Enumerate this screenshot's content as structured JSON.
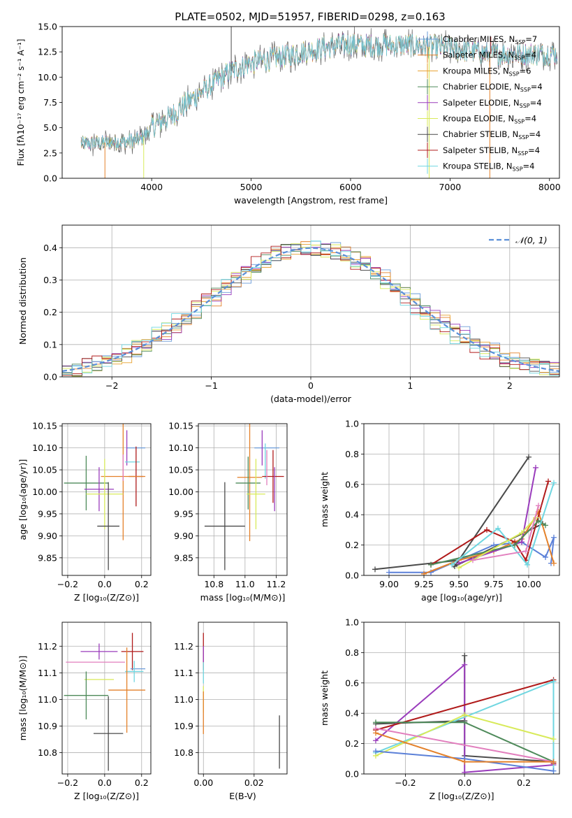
{
  "figure_title": "PLATE=0502, MJD=51957, FIBERID=0298, z=0.163",
  "colors": {
    "Chabrier MILES": "#6a9bd8",
    "Salpeter MILES": "#e4812a",
    "Kroupa MILES": "#e8a12f",
    "Chabrier ELODIE": "#4e8a5a",
    "Salpeter ELODIE": "#9a3cbc",
    "Kroupa ELODIE": "#d8ea5a",
    "Chabrier STELIB": "#4a4a4a",
    "Salpeter STELIB": "#b01a1a",
    "Kroupa STELIB": "#6fd6e0",
    "pink": "#e27fbe",
    "blue": "#5b80d8",
    "gauss": "#5b8fd8"
  },
  "chart_data": [
    {
      "id": "spectrum",
      "type": "line",
      "title": "PLATE=0502, MJD=51957, FIBERID=0298, z=0.163",
      "xlabel": "wavelength [Angstrom, rest frame]",
      "ylabel": "Flux [fλ10⁻¹⁷ erg cm⁻² s⁻¹ A⁻¹]",
      "xlim": [
        3100,
        8100
      ],
      "ylim": [
        0,
        15
      ],
      "x_ticks": [
        4000,
        5000,
        6000,
        7000,
        8000
      ],
      "y_ticks": [
        0.0,
        2.5,
        5.0,
        7.5,
        10.0,
        12.5,
        15.0
      ],
      "grid": false,
      "legend_position": "upper right",
      "legend": [
        {
          "name": "Chabrier MILES",
          "n": "7",
          "color": "#6a9bd8"
        },
        {
          "name": "Salpeter MILES",
          "n": "4",
          "color": "#e4812a"
        },
        {
          "name": "Kroupa MILES",
          "n": "6",
          "color": "#e8a12f"
        },
        {
          "name": "Chabrier ELODIE",
          "n": "4",
          "color": "#4e8a5a"
        },
        {
          "name": "Salpeter ELODIE",
          "n": "4",
          "color": "#9a3cbc"
        },
        {
          "name": "Kroupa ELODIE",
          "n": "4",
          "color": "#d8ea5a"
        },
        {
          "name": "Chabrier STELIB",
          "n": "4",
          "color": "#4a4a4a"
        },
        {
          "name": "Salpeter STELIB",
          "n": "4",
          "color": "#b01a1a"
        },
        {
          "name": "Kroupa STELIB",
          "n": "4",
          "color": "#6fd6e0"
        }
      ],
      "continuum": {
        "x": [
          3300,
          3500,
          3700,
          3900,
          4000,
          4200,
          4400,
          4600,
          4800,
          5000,
          5200,
          5400,
          5600,
          5800,
          6000,
          6200,
          6500,
          6800,
          7000,
          7200,
          7400
        ],
        "y": [
          3.4,
          3.5,
          3.6,
          3.9,
          5.0,
          6.2,
          7.8,
          9.2,
          10.6,
          11.4,
          11.8,
          12.2,
          12.7,
          13.0,
          13.3,
          13.1,
          13.2,
          13.0,
          12.8,
          12.6,
          12.3
        ]
      },
      "spikes": [
        {
          "x": 3530,
          "y": 0.0
        },
        {
          "x": 3920,
          "y": 0.0
        },
        {
          "x": 4800,
          "y": 15.0
        },
        {
          "x": 6790,
          "y": 0.0
        },
        {
          "x": 7400,
          "y": 0.0
        },
        {
          "x": 7410,
          "y": 14.0
        }
      ]
    },
    {
      "id": "residual_hist",
      "type": "histogram",
      "xlabel": "(data-model)/error",
      "ylabel": "Normed distribution",
      "xlim": [
        -2.5,
        2.5
      ],
      "ylim": [
        0,
        0.47
      ],
      "x_ticks": [
        -2,
        -1,
        0,
        1,
        2
      ],
      "y_ticks": [
        0.0,
        0.1,
        0.2,
        0.3,
        0.4
      ],
      "grid": true,
      "legend_position": "upper right",
      "legend": [
        {
          "name": "𝒩(0, 1)",
          "color": "#5b8fd8"
        }
      ],
      "bin_width": 0.1
    },
    {
      "id": "age_vs_Z",
      "type": "errorbar",
      "xlabel": "Z [log₁₀(Z/Z⊙)]",
      "ylabel": "age  [log₁₀(age/yr)]",
      "xlim": [
        -0.23,
        0.25
      ],
      "ylim": [
        9.81,
        10.155
      ],
      "x_ticks": [
        -0.2,
        0.0,
        0.2
      ],
      "y_ticks": [
        9.85,
        9.9,
        9.95,
        10.0,
        10.05,
        10.1,
        10.15
      ],
      "grid": true,
      "points": [
        {
          "color": "#6a9bd8",
          "x": 0.17,
          "xerr": 0.05,
          "y": 10.1,
          "yerr": 0.0
        },
        {
          "color": "#9a3cbc",
          "x": 0.12,
          "xerr": 0.0,
          "y": 10.1,
          "yerr": 0.04
        },
        {
          "color": "#6fd6e0",
          "x": 0.15,
          "xerr": 0.04,
          "y": 10.068,
          "yerr": 0.0
        },
        {
          "color": "#b01a1a",
          "x": 0.17,
          "xerr": 0.04,
          "y": 10.035,
          "yerr": 0.068
        },
        {
          "color": "#e4812a",
          "x": 0.1,
          "xerr": 0.12,
          "y": 10.035,
          "yerr": 0.145
        },
        {
          "color": "#e27fbe",
          "x": 0.1,
          "xerr": 0.0,
          "y": 10.055,
          "yerr": 0.03
        },
        {
          "color": "#4e8a5a",
          "x": -0.1,
          "xerr": 0.12,
          "y": 10.02,
          "yerr": 0.062
        },
        {
          "color": "#9a3cbc",
          "x": -0.03,
          "xerr": 0.08,
          "y": 10.006,
          "yerr": 0.05
        },
        {
          "color": "#d8ea5a",
          "x": 0.0,
          "xerr": 0.1,
          "y": 9.995,
          "yerr": 0.08
        },
        {
          "color": "#4a4a4a",
          "x": 0.02,
          "xerr": 0.06,
          "y": 9.922,
          "yerr": 0.1
        }
      ]
    },
    {
      "id": "age_vs_mass",
      "type": "errorbar",
      "xlabel": "mass [log₁₀(M/M⊙)]",
      "ylabel": "",
      "xlim": [
        10.7,
        11.27
      ],
      "ylim": [
        9.81,
        10.155
      ],
      "x_ticks": [
        10.8,
        11.0,
        11.2
      ],
      "y_ticks": [
        9.85,
        9.9,
        9.95,
        10.0,
        10.05,
        10.1,
        10.15
      ],
      "grid": true,
      "points": [
        {
          "color": "#6a9bd8",
          "x": 11.14,
          "xerr": 0.08,
          "y": 10.1,
          "yerr": 0.0
        },
        {
          "color": "#9a3cbc",
          "x": 11.11,
          "xerr": 0.0,
          "y": 10.1,
          "yerr": 0.04
        },
        {
          "color": "#6fd6e0",
          "x": 11.13,
          "xerr": 0.0,
          "y": 10.07,
          "yerr": 0.04
        },
        {
          "color": "#b01a1a",
          "x": 11.18,
          "xerr": 0.07,
          "y": 10.035,
          "yerr": 0.06
        },
        {
          "color": "#e4812a",
          "x": 11.03,
          "xerr": 0.08,
          "y": 10.033,
          "yerr": 0.145
        },
        {
          "color": "#e27fbe",
          "x": 11.14,
          "xerr": 0.0,
          "y": 10.055,
          "yerr": 0.04
        },
        {
          "color": "#4e8a5a",
          "x": 11.02,
          "xerr": 0.08,
          "y": 10.02,
          "yerr": 0.06
        },
        {
          "color": "#9a3cbc",
          "x": 11.19,
          "xerr": 0.0,
          "y": 10.006,
          "yerr": 0.05
        },
        {
          "color": "#d8ea5a",
          "x": 11.07,
          "xerr": 0.06,
          "y": 9.995,
          "yerr": 0.08
        },
        {
          "color": "#4a4a4a",
          "x": 10.87,
          "xerr": 0.13,
          "y": 9.922,
          "yerr": 0.1
        }
      ]
    },
    {
      "id": "massweight_vs_age",
      "type": "line",
      "xlabel": "age  [log₁₀(age/yr)]",
      "ylabel": "mass weight",
      "xlim": [
        8.82,
        10.22
      ],
      "ylim": [
        0.0,
        1.0
      ],
      "x_ticks": [
        9.0,
        9.25,
        9.5,
        9.75,
        10.0
      ],
      "y_ticks": [
        0.0,
        0.2,
        0.4,
        0.6,
        0.8,
        1.0
      ],
      "grid": true,
      "series": [
        {
          "color": "#4a4a4a",
          "x": [
            8.9,
            9.5,
            10.0,
            9.47,
            10.1
          ],
          "y": [
            0.04,
            0.1,
            0.78,
            0.06,
            0.34
          ]
        },
        {
          "color": "#5b80d8",
          "x": [
            9.0,
            9.3,
            9.75,
            9.95,
            10.12,
            10.18,
            10.16
          ],
          "y": [
            0.02,
            0.02,
            0.2,
            0.22,
            0.12,
            0.25,
            0.08
          ]
        },
        {
          "color": "#e4812a",
          "x": [
            9.25,
            9.5,
            9.75,
            9.95,
            10.07,
            10.18
          ],
          "y": [
            0.01,
            0.1,
            0.16,
            0.24,
            0.42,
            0.08
          ]
        },
        {
          "color": "#b01a1a",
          "x": [
            9.3,
            9.7,
            9.9,
            9.98,
            10.14
          ],
          "y": [
            0.07,
            0.3,
            0.22,
            0.1,
            0.62
          ]
        },
        {
          "color": "#9a3cbc",
          "x": [
            9.5,
            9.95,
            10.05
          ],
          "y": [
            0.08,
            0.22,
            0.71
          ]
        },
        {
          "color": "#4e8a5a",
          "x": [
            9.3,
            9.9,
            10.07,
            10.12
          ],
          "y": [
            0.07,
            0.2,
            0.36,
            0.33
          ]
        },
        {
          "color": "#6fd6e0",
          "x": [
            9.45,
            9.78,
            9.99,
            10.18
          ],
          "y": [
            0.07,
            0.31,
            0.07,
            0.61
          ]
        },
        {
          "color": "#d8ea5a",
          "x": [
            9.5,
            9.95,
            10.05
          ],
          "y": [
            0.05,
            0.28,
            0.38
          ]
        },
        {
          "color": "#e27fbe",
          "x": [
            9.6,
            9.98,
            10.07
          ],
          "y": [
            0.1,
            0.16,
            0.46
          ]
        }
      ]
    },
    {
      "id": "mass_vs_Z",
      "type": "errorbar",
      "xlabel": "Z [log₁₀(Z/Z⊙)]",
      "ylabel": "mass [log₁₀(M/M⊙)]",
      "xlim": [
        -0.23,
        0.25
      ],
      "ylim": [
        10.72,
        11.29
      ],
      "x_ticks": [
        -0.2,
        0.0,
        0.2
      ],
      "y_ticks": [
        10.8,
        10.9,
        11.0,
        11.1,
        11.2
      ],
      "grid": true,
      "points": [
        {
          "color": "#b01a1a",
          "x": 0.15,
          "xerr": 0.06,
          "y": 11.18,
          "yerr": 0.07
        },
        {
          "color": "#9a3cbc",
          "x": -0.03,
          "xerr": 0.1,
          "y": 11.18,
          "yerr": 0.03
        },
        {
          "color": "#e27fbe",
          "x": -0.05,
          "xerr": 0.16,
          "y": 11.14,
          "yerr": 0.0
        },
        {
          "color": "#6a9bd8",
          "x": 0.18,
          "xerr": 0.04,
          "y": 11.115,
          "yerr": 0.0
        },
        {
          "color": "#6fd6e0",
          "x": 0.16,
          "xerr": 0.05,
          "y": 11.105,
          "yerr": 0.04
        },
        {
          "color": "#d8ea5a",
          "x": -0.03,
          "xerr": 0.08,
          "y": 11.075,
          "yerr": 0.0
        },
        {
          "color": "#e4812a",
          "x": 0.12,
          "xerr": 0.1,
          "y": 11.035,
          "yerr": 0.16
        },
        {
          "color": "#4e8a5a",
          "x": -0.1,
          "xerr": 0.12,
          "y": 11.015,
          "yerr": 0.09
        },
        {
          "color": "#4a4a4a",
          "x": 0.02,
          "xerr": 0.08,
          "y": 10.872,
          "yerr": 0.14
        }
      ]
    },
    {
      "id": "mass_vs_ebv",
      "type": "errorbar",
      "xlabel": "E(B-V)",
      "ylabel": "",
      "xlim": [
        -0.002,
        0.033
      ],
      "ylim": [
        10.72,
        11.29
      ],
      "x_ticks": [
        0.0,
        0.02
      ],
      "y_ticks": [
        10.8,
        10.9,
        11.0,
        11.1,
        11.2
      ],
      "grid": true,
      "points": [
        {
          "color": "#b01a1a",
          "x": 0.0,
          "xerr": 0.0,
          "y": 11.18,
          "yerr": 0.07
        },
        {
          "color": "#9a3cbc",
          "x": 0.0,
          "xerr": 0.0,
          "y": 11.17,
          "yerr": 0.03
        },
        {
          "color": "#6fd6e0",
          "x": 0.0,
          "xerr": 0.0,
          "y": 11.1,
          "yerr": 0.04
        },
        {
          "color": "#d8ea5a",
          "x": 0.0,
          "xerr": 0.0,
          "y": 11.0,
          "yerr": 0.05
        },
        {
          "color": "#e4812a",
          "x": 0.0,
          "xerr": 0.0,
          "y": 10.95,
          "yerr": 0.08
        },
        {
          "color": "#4a4a4a",
          "x": 0.03,
          "xerr": 0.0,
          "y": 10.84,
          "yerr": 0.1
        }
      ]
    },
    {
      "id": "massweight_vs_Z",
      "type": "line",
      "xlabel": "Z [log₁₀(Z/Z⊙)]",
      "ylabel": "mass weight",
      "xlim": [
        -0.34,
        0.32
      ],
      "ylim": [
        0.0,
        1.0
      ],
      "x_ticks": [
        -0.2,
        0.0,
        0.2
      ],
      "y_ticks": [
        0.0,
        0.2,
        0.4,
        0.6,
        0.8,
        1.0
      ],
      "grid": true,
      "series": [
        {
          "color": "#4a4a4a",
          "x": [
            -0.3,
            0.0,
            0.0,
            0.0,
            0.3
          ],
          "y": [
            0.33,
            0.35,
            0.78,
            0.12,
            0.08
          ]
        },
        {
          "color": "#9a3cbc",
          "x": [
            -0.3,
            0.0,
            0.0,
            0.3
          ],
          "y": [
            0.22,
            0.72,
            0.01,
            0.06
          ]
        },
        {
          "color": "#b01a1a",
          "x": [
            -0.3,
            0.3,
            0.3
          ],
          "y": [
            0.29,
            0.62,
            0.07
          ]
        },
        {
          "color": "#6fd6e0",
          "x": [
            -0.3,
            0.3,
            0.3
          ],
          "y": [
            0.14,
            0.61,
            0.02
          ]
        },
        {
          "color": "#4e8a5a",
          "x": [
            -0.3,
            0.0,
            0.3
          ],
          "y": [
            0.34,
            0.34,
            0.08
          ]
        },
        {
          "color": "#d8ea5a",
          "x": [
            -0.3,
            0.0,
            0.3
          ],
          "y": [
            0.12,
            0.39,
            0.23
          ]
        },
        {
          "color": "#e27fbe",
          "x": [
            -0.3,
            0.3
          ],
          "y": [
            0.3,
            0.08
          ]
        },
        {
          "color": "#5b80d8",
          "x": [
            -0.3,
            0.0,
            0.3
          ],
          "y": [
            0.15,
            0.1,
            0.02
          ]
        },
        {
          "color": "#e4812a",
          "x": [
            -0.3,
            0.0,
            0.3
          ],
          "y": [
            0.27,
            0.08,
            0.08
          ]
        }
      ]
    }
  ]
}
